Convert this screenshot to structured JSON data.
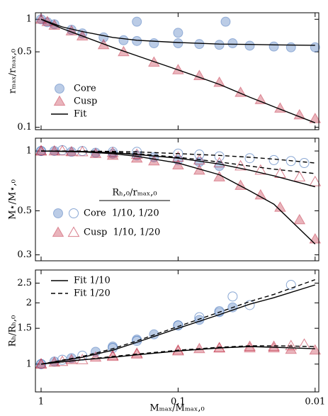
{
  "chart_data": [
    {
      "type": "scatter",
      "ylabel": "rₘₐₓ/rₘₐₓ,₀",
      "xlog": true,
      "ylog": true,
      "xlim": [
        1.1,
        0.0094
      ],
      "ylim": [
        0.095,
        1.15
      ],
      "xticks": [
        1,
        0.1,
        0.01
      ],
      "yticks": [
        1,
        0.5,
        0.1
      ],
      "legend": "lower left",
      "series": [
        {
          "name": "Core",
          "kind": "scatter",
          "marker": "circle",
          "filled": true,
          "color": "#3b6cb7",
          "x": [
            1,
            0.9,
            0.8,
            0.6,
            0.5,
            0.35,
            0.25,
            0.2,
            0.15,
            0.1,
            0.07,
            0.05,
            0.04,
            0.03,
            0.02,
            0.015,
            0.01,
            0.2,
            0.045,
            0.1
          ],
          "values": [
            1,
            0.94,
            0.9,
            0.8,
            0.74,
            0.68,
            0.64,
            0.63,
            0.6,
            0.6,
            0.59,
            0.58,
            0.6,
            0.57,
            0.56,
            0.55,
            0.55,
            0.95,
            0.95,
            0.75
          ]
        },
        {
          "name": "Cusp",
          "kind": "scatter",
          "marker": "triangle",
          "filled": true,
          "color": "#c0283f",
          "x": [
            1,
            0.9,
            0.8,
            0.6,
            0.5,
            0.35,
            0.25,
            0.15,
            0.1,
            0.07,
            0.05,
            0.035,
            0.025,
            0.018,
            0.013,
            0.01
          ],
          "values": [
            1,
            0.95,
            0.88,
            0.78,
            0.7,
            0.58,
            0.5,
            0.4,
            0.34,
            0.3,
            0.26,
            0.21,
            0.18,
            0.15,
            0.13,
            0.12
          ]
        },
        {
          "name": "Fit",
          "kind": "line",
          "dashed": false,
          "color": "#000000",
          "x": [
            1,
            0.7,
            0.5,
            0.3,
            0.2,
            0.1,
            0.05,
            0.03,
            0.02,
            0.01
          ],
          "values": [
            1,
            0.85,
            0.77,
            0.68,
            0.64,
            0.61,
            0.59,
            0.585,
            0.58,
            0.575
          ]
        },
        {
          "kind": "line",
          "dashed": false,
          "color": "#000000",
          "x": [
            1,
            0.7,
            0.5,
            0.3,
            0.2,
            0.1,
            0.05,
            0.03,
            0.02,
            0.01
          ],
          "values": [
            1,
            0.82,
            0.7,
            0.55,
            0.46,
            0.34,
            0.25,
            0.19,
            0.155,
            0.11
          ]
        }
      ]
    },
    {
      "type": "scatter",
      "ylabel": "M⋆/M⋆,₀",
      "xlog": true,
      "ylog": true,
      "xlim": [
        1.1,
        0.0094
      ],
      "ylim": [
        0.28,
        1.16
      ],
      "xticks": [
        1,
        0.1,
        0.01
      ],
      "yticks": [
        1,
        0.5,
        0.3
      ],
      "legend_title": "Rₕ,₀/rₘₐₓ,₀",
      "legend_entries": [
        "Core  1/10, 1/20",
        "Cusp  1/10, 1/20"
      ],
      "series": [
        {
          "kind": "scatter",
          "marker": "circle",
          "filled": true,
          "color": "#3b6cb7",
          "x": [
            1,
            0.8,
            0.6,
            0.4,
            0.3,
            0.2,
            0.15,
            0.1,
            0.07,
            0.05
          ],
          "values": [
            1,
            1,
            0.99,
            0.98,
            0.97,
            0.95,
            0.93,
            0.9,
            0.88,
            0.84
          ]
        },
        {
          "kind": "scatter",
          "marker": "circle",
          "filled": false,
          "color": "#3b6cb7",
          "x": [
            1,
            0.7,
            0.5,
            0.3,
            0.2,
            0.1,
            0.07,
            0.05,
            0.03,
            0.02,
            0.015,
            0.012
          ],
          "values": [
            1,
            1.01,
            1,
            0.99,
            0.99,
            0.97,
            0.96,
            0.94,
            0.92,
            0.9,
            0.89,
            0.87
          ]
        },
        {
          "kind": "scatter",
          "marker": "triangle",
          "filled": true,
          "color": "#c0283f",
          "x": [
            1,
            0.8,
            0.6,
            0.4,
            0.3,
            0.2,
            0.15,
            0.1,
            0.07,
            0.05,
            0.035,
            0.025,
            0.018,
            0.013,
            0.01
          ],
          "values": [
            1,
            1,
            0.99,
            0.97,
            0.95,
            0.92,
            0.89,
            0.85,
            0.8,
            0.74,
            0.67,
            0.6,
            0.52,
            0.45,
            0.36
          ]
        },
        {
          "kind": "scatter",
          "marker": "triangle",
          "filled": false,
          "color": "#c0283f",
          "x": [
            1,
            0.7,
            0.5,
            0.3,
            0.2,
            0.1,
            0.07,
            0.05,
            0.035,
            0.025,
            0.018,
            0.013,
            0.01
          ],
          "values": [
            1,
            1,
            0.99,
            0.98,
            0.96,
            0.93,
            0.9,
            0.87,
            0.84,
            0.8,
            0.77,
            0.74,
            0.7
          ]
        },
        {
          "kind": "line",
          "dashed": false,
          "color": "#000000",
          "x": [
            1,
            0.5,
            0.3,
            0.2,
            0.1,
            0.05,
            0.03,
            0.02,
            0.01
          ],
          "values": [
            1,
            0.995,
            0.98,
            0.96,
            0.92,
            0.86,
            0.8,
            0.75,
            0.66
          ]
        },
        {
          "kind": "line",
          "dashed": true,
          "color": "#000000",
          "x": [
            1,
            0.5,
            0.3,
            0.2,
            0.1,
            0.05,
            0.03,
            0.02,
            0.01
          ],
          "values": [
            1,
            1,
            0.995,
            0.99,
            0.97,
            0.95,
            0.93,
            0.91,
            0.87
          ]
        },
        {
          "kind": "line",
          "dashed": false,
          "color": "#000000",
          "x": [
            1,
            0.5,
            0.3,
            0.2,
            0.1,
            0.05,
            0.03,
            0.02,
            0.01
          ],
          "values": [
            1,
            0.99,
            0.97,
            0.94,
            0.87,
            0.76,
            0.63,
            0.54,
            0.34
          ]
        },
        {
          "kind": "line",
          "dashed": true,
          "color": "#000000",
          "x": [
            1,
            0.5,
            0.3,
            0.2,
            0.1,
            0.05,
            0.03,
            0.02,
            0.01
          ],
          "values": [
            1,
            0.995,
            0.985,
            0.97,
            0.93,
            0.88,
            0.84,
            0.81,
            0.77
          ]
        }
      ]
    },
    {
      "type": "scatter",
      "ylabel": "Rₕ/Rₕ,₀",
      "xlabel": "Mₘₐₓ/Mₘₐₓ,₀",
      "xticklabels": true,
      "xlog": true,
      "ylog": true,
      "xlim": [
        1.1,
        0.0094
      ],
      "ylim": [
        0.73,
        2.9
      ],
      "xticks": [
        1,
        0.1,
        0.01
      ],
      "yticks": [
        1,
        1.5,
        2,
        2.5
      ],
      "legend": "upper left",
      "series": [
        {
          "kind": "scatter",
          "marker": "circle",
          "filled": true,
          "color": "#3b6cb7",
          "x": [
            1,
            0.8,
            0.6,
            0.4,
            0.3,
            0.2,
            0.15,
            0.1,
            0.07,
            0.05,
            0.04
          ],
          "values": [
            1,
            1.03,
            1.07,
            1.15,
            1.22,
            1.32,
            1.4,
            1.55,
            1.65,
            1.8,
            1.9
          ]
        },
        {
          "kind": "scatter",
          "marker": "circle",
          "filled": false,
          "color": "#3b6cb7",
          "x": [
            1,
            0.7,
            0.5,
            0.3,
            0.2,
            0.1,
            0.07,
            0.05,
            0.04,
            0.03,
            0.015
          ],
          "values": [
            1,
            1.05,
            1.1,
            1.2,
            1.3,
            1.55,
            1.7,
            1.82,
            2.15,
            1.95,
            2.45
          ]
        },
        {
          "kind": "scatter",
          "marker": "triangle",
          "filled": true,
          "color": "#c0283f",
          "x": [
            1,
            0.8,
            0.6,
            0.4,
            0.3,
            0.2,
            0.1,
            0.07,
            0.05,
            0.03,
            0.02,
            0.015,
            0.01
          ],
          "values": [
            1,
            1.02,
            1.05,
            1.08,
            1.1,
            1.13,
            1.17,
            1.19,
            1.2,
            1.2,
            1.2,
            1.18,
            1.17
          ]
        },
        {
          "kind": "scatter",
          "marker": "triangle",
          "filled": false,
          "color": "#c0283f",
          "x": [
            1,
            0.7,
            0.5,
            0.3,
            0.2,
            0.1,
            0.05,
            0.03,
            0.02,
            0.015,
            0.012
          ],
          "values": [
            1,
            1.03,
            1.05,
            1.09,
            1.12,
            1.16,
            1.2,
            1.22,
            1.22,
            1.23,
            1.25
          ]
        },
        {
          "name": "Fit 1/10",
          "kind": "line",
          "dashed": false,
          "color": "#000000",
          "x": [
            1,
            0.5,
            0.3,
            0.2,
            0.1,
            0.05,
            0.03,
            0.02,
            0.01
          ],
          "values": [
            1,
            1.08,
            1.17,
            1.28,
            1.5,
            1.75,
            1.97,
            2.12,
            2.45
          ]
        },
        {
          "name": "Fit 1/20",
          "kind": "line",
          "dashed": true,
          "color": "#000000",
          "x": [
            1,
            0.5,
            0.3,
            0.2,
            0.1,
            0.05,
            0.03,
            0.02,
            0.01
          ],
          "values": [
            1,
            1.09,
            1.19,
            1.3,
            1.53,
            1.8,
            2.03,
            2.2,
            2.6
          ]
        },
        {
          "kind": "line",
          "dashed": false,
          "color": "#000000",
          "x": [
            1,
            0.5,
            0.3,
            0.2,
            0.1,
            0.05,
            0.03,
            0.02,
            0.01
          ],
          "values": [
            1,
            1.05,
            1.08,
            1.11,
            1.16,
            1.2,
            1.22,
            1.21,
            1.19
          ]
        },
        {
          "kind": "line",
          "dashed": true,
          "color": "#000000",
          "x": [
            1,
            0.5,
            0.3,
            0.2,
            0.1,
            0.05,
            0.03,
            0.02,
            0.01
          ],
          "values": [
            1,
            1.05,
            1.09,
            1.12,
            1.17,
            1.21,
            1.23,
            1.23,
            1.22
          ]
        }
      ]
    }
  ]
}
